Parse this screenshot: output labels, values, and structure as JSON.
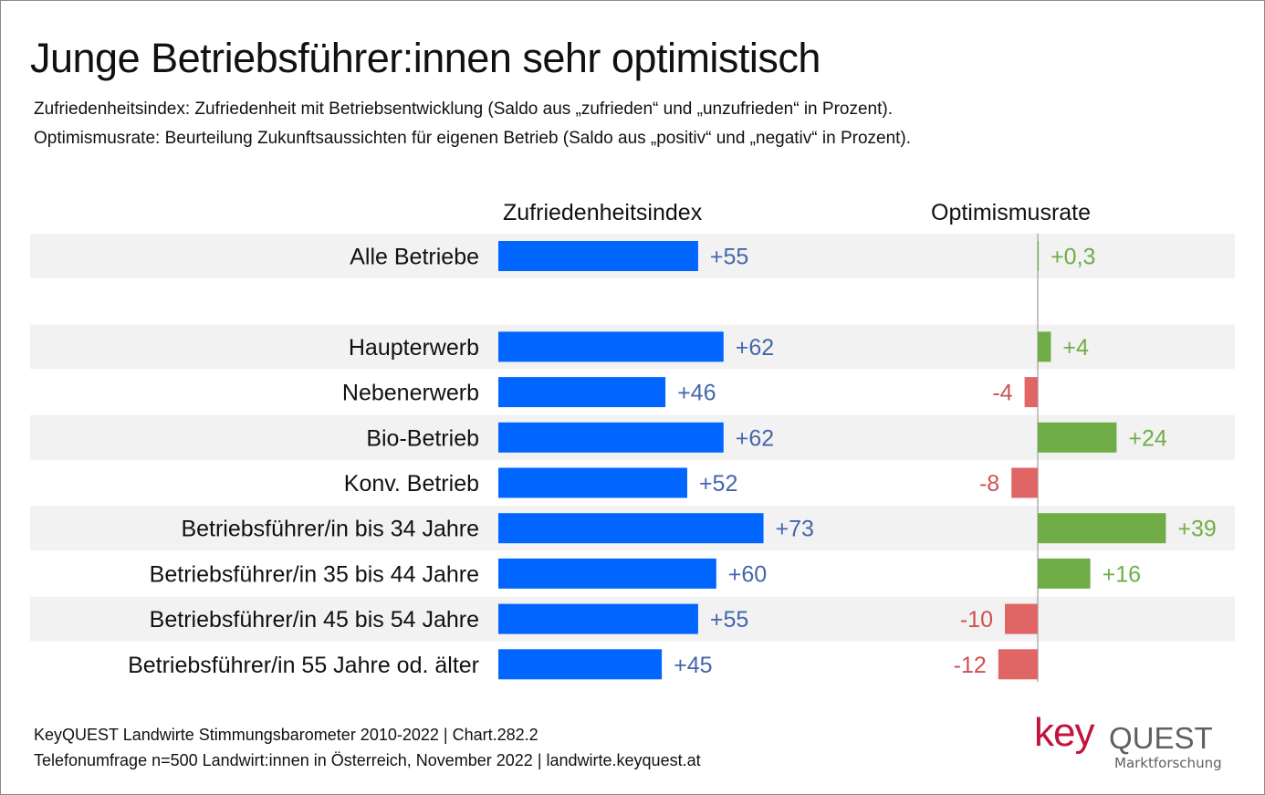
{
  "header": {
    "title": "Junge Betriebsführer:innen sehr optimistisch",
    "subtitle_1": "Zufriedenheitsindex: Zufriedenheit mit Betriebsentwicklung (Saldo aus „zufrieden“ und „unzufrieden“ in Prozent).",
    "subtitle_2": "Optimismusrate: Beurteilung Zukunftsaussichten für eigenen Betrieb (Saldo aus „positiv“ und „negativ“ in Prozent)."
  },
  "footer": {
    "line_1": "KeyQUEST Landwirte Stimmungsbarometer 2010-2022  | Chart.282.2",
    "line_2": "Telefonumfrage n=500 Landwirt:innen in Österreich, November 2022 | landwirte.keyquest.at"
  },
  "logo": {
    "key": "key",
    "quest": "QUEST",
    "tagline": "Marktforschung"
  },
  "colors": {
    "zufriedenheit_bar": "#0066ff",
    "zufriedenheit_label": "#4466aa",
    "positive_bar": "#70ad47",
    "positive_label": "#70ad47",
    "negative_bar": "#e06666",
    "negative_label": "#d05050",
    "row_band": "#f2f2f2",
    "axis": "#b0b0b0"
  },
  "chart_data": {
    "type": "bar",
    "orientation": "horizontal",
    "categories": [
      "Alle Betriebe",
      "",
      "Haupterwerb",
      "Nebenerwerb",
      "Bio-Betrieb",
      "Konv. Betrieb",
      "Betriebsführer/in bis 34 Jahre",
      "Betriebsführer/in 35 bis 44 Jahre",
      "Betriebsführer/in 45 bis 54 Jahre",
      "Betriebsführer/in 55 Jahre od. älter"
    ],
    "series": [
      {
        "name": "Zufriedenheitsindex",
        "values": [
          55,
          null,
          62,
          46,
          62,
          52,
          73,
          60,
          55,
          45
        ],
        "labels": [
          "+55",
          "",
          "+62",
          "+46",
          "+62",
          "+52",
          "+73",
          "+60",
          "+55",
          "+45"
        ]
      },
      {
        "name": "Optimismusrate",
        "values": [
          0.3,
          null,
          4,
          -4,
          24,
          -8,
          39,
          16,
          -10,
          -12
        ],
        "labels": [
          "+0,3",
          "",
          "+4",
          "-4",
          "+24",
          "-8",
          "+39",
          "+16",
          "-10",
          "-12"
        ]
      }
    ],
    "banded_rows": [
      true,
      false,
      true,
      false,
      true,
      false,
      true,
      false,
      true,
      false
    ],
    "title": "Junge Betriebsführer:innen sehr optimistisch",
    "xlabel": "",
    "ylabel": "",
    "grid": false,
    "legend": "column-headers"
  }
}
